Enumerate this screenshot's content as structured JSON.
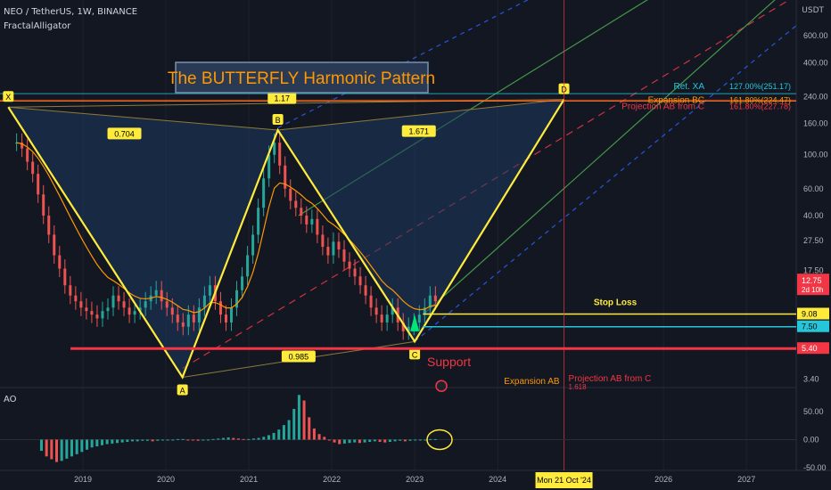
{
  "header": {
    "symbol_line": "NEO / TetherUS, 1W, BINANCE",
    "indicator": "FractalAlligator",
    "currency": "USDT",
    "oscillator": "AO"
  },
  "colors": {
    "background": "#131722",
    "pattern_line": "#ffeb3b",
    "pattern_fill": "#1e3a5f",
    "support": "#f23645",
    "stop_loss": "#ffeb3b",
    "entry": "#26c6da",
    "blue_channel": "#2962ff",
    "red_channel": "#f23645",
    "green_channel": "#4caf50",
    "ao_up": "#26a69a",
    "ao_down": "#ef5350"
  },
  "chart_data": [
    {
      "type": "line",
      "title": "The BUTTERFLY Harmonic Pattern",
      "scale": "log",
      "ylim": [
        3.0,
        900
      ],
      "y_ticks": [
        "600.00",
        "400.00",
        "240.00",
        "160.00",
        "100.00",
        "60.00",
        "40.00",
        "27.50",
        "17.50",
        "3.40"
      ],
      "x_ticks": [
        "2019",
        "2020",
        "2021",
        "2022",
        "2023",
        "2024",
        "2026",
        "2027"
      ],
      "x_labels_positions_dates": [
        2019.0,
        2020.0,
        2021.0,
        2022.0,
        2023.0,
        2024.0,
        2026.0,
        2027.0
      ],
      "pattern_points": [
        {
          "label": "X",
          "date": 2018.1,
          "price": 205
        },
        {
          "label": "A",
          "date": 2020.2,
          "price": 3.5
        },
        {
          "label": "B",
          "date": 2021.35,
          "price": 145
        },
        {
          "label": "C",
          "date": 2023.0,
          "price": 6.0
        },
        {
          "label": "D",
          "date": 2024.8,
          "price": 230
        }
      ],
      "ratios": [
        {
          "text": "0.704",
          "date": 2019.5,
          "price": 135
        },
        {
          "text": "1.17",
          "date": 2021.4,
          "price": 230
        },
        {
          "text": "1.671",
          "date": 2023.05,
          "price": 140
        },
        {
          "text": "0.985",
          "date": 2021.6,
          "price": 4.7
        }
      ],
      "fib_levels": [
        {
          "text": "127.00%(251.17)",
          "label": "Ret. XA",
          "price": 251.17
        },
        {
          "text": "161.80%(224.47)",
          "label": "Expansion BC",
          "price": 224.47
        },
        {
          "text": "161.80%(227.78)",
          "label": "Projection AB from C",
          "price": 227.78
        }
      ],
      "price_tags": [
        {
          "text": "12.75",
          "sub": "2d 10h",
          "color": "#f23645",
          "price": 12.75
        },
        {
          "text": "9.08",
          "color": "#ffeb3b",
          "price": 9.08
        },
        {
          "text": "7.50",
          "color": "#26c6da",
          "price": 7.5
        },
        {
          "text": "5.40",
          "color": "#f23645",
          "price": 5.4
        }
      ],
      "annotations": {
        "stop_loss": "Stop Loss",
        "support": "Support",
        "expansion_ab": "Expansion AB",
        "projection_ab_from_c": "Projection AB from C",
        "ratio_small": "1.618",
        "date_marker": "Mon 21 Oct '24"
      },
      "close": [
        120,
        110,
        90,
        75,
        55,
        40,
        30,
        22,
        18,
        14,
        12,
        11,
        10,
        9.5,
        9,
        8.5,
        9.5,
        10,
        12,
        11,
        10,
        9,
        9.5,
        10,
        11,
        12,
        13,
        11,
        10,
        9,
        8,
        7.5,
        9,
        8,
        10,
        12,
        14,
        11,
        9,
        8,
        10,
        13,
        16,
        22,
        30,
        45,
        70,
        100,
        120,
        85,
        60,
        50,
        45,
        40,
        35,
        38,
        30,
        25,
        22,
        27,
        24,
        20,
        18,
        16,
        14,
        12,
        10,
        9,
        8,
        9,
        10,
        8,
        7,
        7.5,
        8,
        9,
        10,
        12,
        11
      ],
      "close_dates_start": 2018.2,
      "close_dates_end": 2023.25
    },
    {
      "type": "bar",
      "title": "AO",
      "ylim": [
        -55,
        90
      ],
      "y_ticks": [
        "50.00",
        "0.00",
        "-50.00"
      ],
      "values": [
        -20,
        -30,
        -35,
        -40,
        -38,
        -34,
        -30,
        -26,
        -22,
        -18,
        -14,
        -12,
        -10,
        -8,
        -7,
        -6,
        -5,
        -4,
        -3,
        -3,
        -2,
        -2,
        -3,
        -2,
        -1,
        -1,
        0,
        1,
        1,
        0,
        -1,
        -2,
        -1,
        0,
        1,
        2,
        3,
        4,
        3,
        2,
        1,
        1,
        2,
        3,
        5,
        8,
        12,
        18,
        26,
        35,
        55,
        80,
        70,
        40,
        20,
        10,
        5,
        0,
        -5,
        -8,
        -7,
        -6,
        -5,
        -6,
        -5,
        -4,
        -3,
        -4,
        -5,
        -4,
        -3,
        -2,
        -3,
        -2,
        -1,
        -1,
        0,
        1,
        1
      ],
      "dates_start": 2018.5,
      "dates_end": 2023.25
    }
  ]
}
